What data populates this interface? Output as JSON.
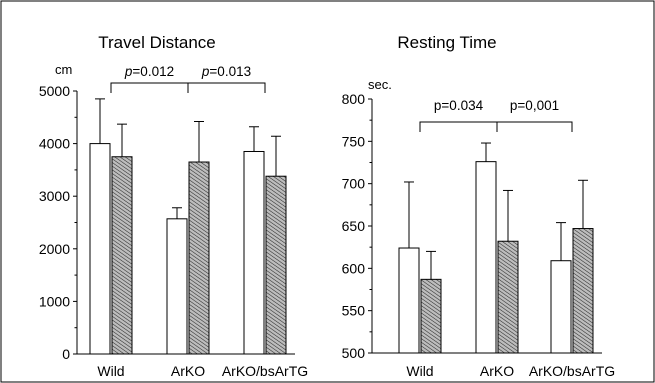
{
  "chart_data": [
    {
      "type": "bar",
      "title": "Travel Distance",
      "ylabel": "cm",
      "ylim": [
        0,
        5000
      ],
      "yticks": [
        "0",
        "1000",
        "2000",
        "3000",
        "4000",
        "5000"
      ],
      "categories": [
        "Wild",
        "ArKO",
        "ArKO/bsArTG"
      ],
      "series": [
        {
          "values": [
            4000,
            2570,
            3850
          ],
          "errors": [
            850,
            210,
            470
          ],
          "color": "#ffffff",
          "pattern": "none"
        },
        {
          "values": [
            3750,
            3650,
            3380
          ],
          "errors": [
            620,
            770,
            760
          ],
          "color": "#b8b8b8",
          "pattern": "hatch"
        }
      ],
      "annotations": [
        {
          "from": "Wild",
          "to": "ArKO",
          "p_label": "p",
          "p_value": "=0.012",
          "italic": true
        },
        {
          "from": "ArKO",
          "to": "ArKO/bsArTG",
          "p_label": "p",
          "p_value": "=0.013",
          "italic": true
        }
      ],
      "grid": false,
      "legend": "none"
    },
    {
      "type": "bar",
      "title": "Resting Time",
      "ylabel": "sec.",
      "ylim": [
        500,
        800
      ],
      "yticks": [
        "500",
        "550",
        "600",
        "650",
        "700",
        "750",
        "800"
      ],
      "categories": [
        "Wild",
        "ArKO",
        "ArKO/bsArTG"
      ],
      "series": [
        {
          "values": [
            624,
            726,
            609
          ],
          "errors": [
            78,
            22,
            45
          ],
          "color": "#ffffff",
          "pattern": "none"
        },
        {
          "values": [
            587,
            632,
            647
          ],
          "errors": [
            33,
            60,
            57
          ],
          "color": "#b8b8b8",
          "pattern": "hatch"
        }
      ],
      "annotations": [
        {
          "from": "Wild",
          "to": "ArKO",
          "p_label": "p",
          "p_value": "=0.034",
          "italic": false
        },
        {
          "from": "ArKO",
          "to": "ArKO/bsArTG",
          "p_label": "p",
          "p_value": "=0,001",
          "italic": false
        }
      ],
      "grid": false,
      "legend": "none"
    }
  ]
}
